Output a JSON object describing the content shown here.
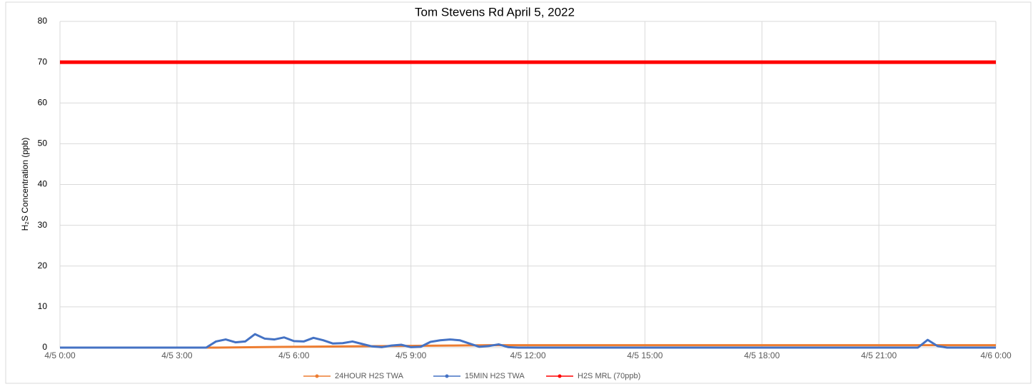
{
  "chart_data": {
    "type": "line",
    "title": "Tom Stevens Rd  April 5, 2022",
    "y_label": "H₂S Concentration (ppb)",
    "xlim": [
      0,
      24
    ],
    "xticks": [
      {
        "value": 0,
        "label": "4/5 0:00"
      },
      {
        "value": 3,
        "label": "4/5 3:00"
      },
      {
        "value": 6,
        "label": "4/5 6:00"
      },
      {
        "value": 9,
        "label": "4/5 9:00"
      },
      {
        "value": 12,
        "label": "4/5 12:00"
      },
      {
        "value": 15,
        "label": "4/5 15:00"
      },
      {
        "value": 18,
        "label": "4/5 18:00"
      },
      {
        "value": 21,
        "label": "4/5 21:00"
      },
      {
        "value": 24,
        "label": "4/6 0:00"
      }
    ],
    "ylim": [
      0,
      80
    ],
    "yticks": [
      0,
      10,
      20,
      30,
      40,
      50,
      60,
      70,
      80
    ],
    "grid": true,
    "legend": "bottom",
    "series": [
      {
        "name": "24HOUR H2S TWA",
        "color": "#ed7d31",
        "width": 3,
        "x": [
          0,
          4,
          6,
          8,
          10,
          11,
          24
        ],
        "values": [
          0,
          0,
          0.2,
          0.35,
          0.5,
          0.6,
          0.6
        ]
      },
      {
        "name": "15MIN H2S TWA",
        "color": "#4472c4",
        "width": 3,
        "x": [
          0,
          0.25,
          0.5,
          0.75,
          1,
          1.25,
          1.5,
          1.75,
          2,
          2.25,
          2.5,
          2.75,
          3,
          3.25,
          3.5,
          3.75,
          4,
          4.25,
          4.5,
          4.75,
          5,
          5.25,
          5.5,
          5.75,
          6,
          6.25,
          6.5,
          6.75,
          7,
          7.25,
          7.5,
          7.75,
          8,
          8.25,
          8.5,
          8.75,
          9,
          9.25,
          9.5,
          9.75,
          10,
          10.25,
          10.5,
          10.75,
          11,
          11.25,
          11.5,
          11.75,
          12,
          12.25,
          12.5,
          12.75,
          13,
          13.25,
          13.5,
          13.75,
          14,
          14.25,
          14.5,
          14.75,
          15,
          15.25,
          15.5,
          15.75,
          16,
          16.25,
          16.5,
          16.75,
          17,
          17.25,
          17.5,
          17.75,
          18,
          18.25,
          18.5,
          18.75,
          19,
          19.25,
          19.5,
          19.75,
          20,
          20.25,
          20.5,
          20.75,
          21,
          21.25,
          21.5,
          21.75,
          22,
          22.25,
          22.5,
          22.75,
          23,
          23.25,
          23.5,
          23.75,
          24
        ],
        "values": [
          0,
          0,
          0,
          0,
          0,
          0,
          0,
          0,
          0,
          0,
          0,
          0,
          0,
          0,
          0,
          0,
          1.5,
          2.0,
          1.3,
          1.5,
          3.3,
          2.2,
          2.0,
          2.5,
          1.6,
          1.5,
          2.4,
          1.8,
          1.0,
          1.1,
          1.5,
          0.9,
          0.3,
          0.1,
          0.5,
          0.7,
          0.1,
          0.2,
          1.4,
          1.8,
          2.0,
          1.8,
          1.0,
          0.2,
          0.4,
          0.8,
          0.1,
          0,
          0,
          0,
          0,
          0,
          0,
          0,
          0,
          0,
          0,
          0,
          0,
          0,
          0,
          0,
          0,
          0,
          0,
          0,
          0,
          0,
          0,
          0,
          0,
          0,
          0,
          0,
          0,
          0,
          0,
          0,
          0,
          0,
          0,
          0,
          0,
          0,
          0,
          0,
          0,
          0,
          0,
          1.9,
          0.4,
          0,
          0,
          0,
          0,
          0,
          0
        ]
      },
      {
        "name": "H2S MRL (70ppb)",
        "color": "#ff0000",
        "width": 5,
        "x": [
          0,
          24
        ],
        "values": [
          70,
          70
        ]
      }
    ]
  }
}
